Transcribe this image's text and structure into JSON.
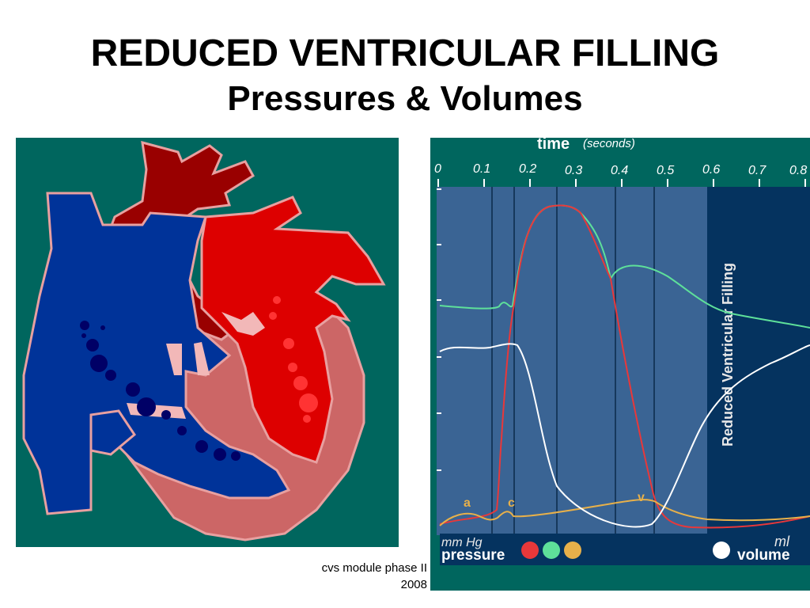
{
  "slide": {
    "title_line1": "REDUCED VENTRICULAR FILLING",
    "title_line2": "Pressures & Volumes",
    "footer_line1": "cvs module phase II",
    "footer_line2": "2008"
  },
  "graph": {
    "time_label": "time",
    "time_unit": "(seconds)",
    "ticks": [
      "0",
      "0.1",
      "0.2",
      "0.3",
      "0.4",
      "0.5",
      "0.6",
      "0.7",
      "0.8"
    ],
    "phase_label": "Reduced Ventricular Filling",
    "wave_a": "a",
    "wave_c": "c",
    "wave_v": "v",
    "pressure_unit": "mm Hg",
    "volume_unit": "ml",
    "pressure_label": "pressure",
    "volume_label": "volume"
  },
  "colors": {
    "panel_bg": "#00665e",
    "plot_bg": "#3a6494",
    "highlight_bg": "#05335f",
    "ventricular_pressure": "#e8383a",
    "aortic_pressure": "#5ee09a",
    "atrial_pressure": "#e7b04a",
    "volume": "#ffffff"
  }
}
